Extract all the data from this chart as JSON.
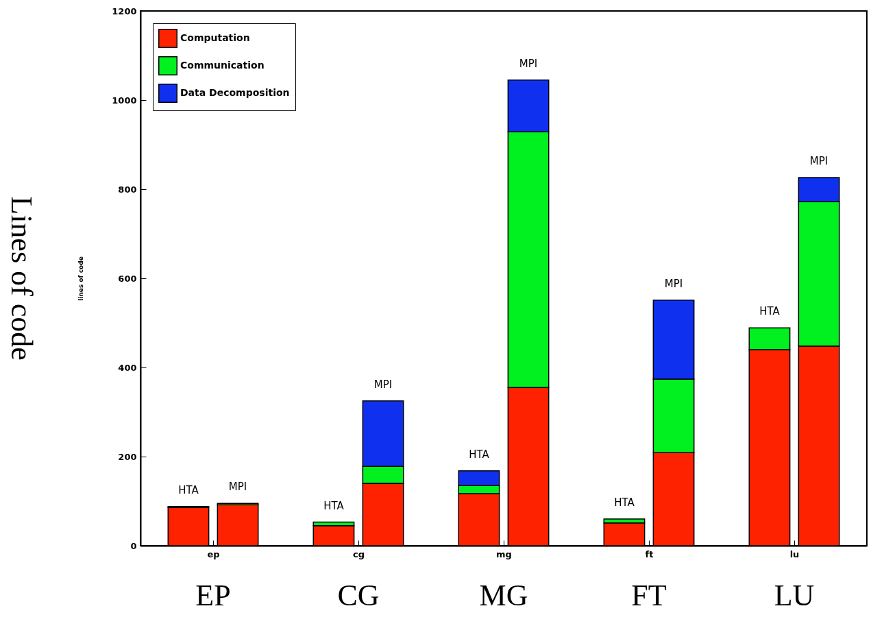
{
  "chart_data": {
    "type": "bar",
    "stacked": true,
    "ylabel": "lines of code",
    "categories": [
      "HTA",
      "MPI",
      "HTA",
      "MPI",
      "HTA",
      "MPI",
      "HTA",
      "MPI",
      "HTA",
      "MPI"
    ],
    "series": [
      {
        "name": "Computation",
        "color": "#ff2200",
        "values": [
          86,
          92,
          45,
          140,
          117,
          355,
          51,
          209,
          440,
          448
        ]
      },
      {
        "name": "Communication",
        "color": "#00f020",
        "values": [
          2,
          3,
          8,
          38,
          18,
          574,
          9,
          165,
          49,
          324
        ]
      },
      {
        "name": "Data Decomposition",
        "color": "#1030f0",
        "values": [
          null,
          null,
          null,
          147,
          33,
          116,
          null,
          177,
          null,
          54
        ]
      }
    ],
    "ylim": [
      0,
      1200
    ],
    "yticks": [
      0,
      200,
      400,
      600,
      800,
      1000,
      1200
    ],
    "legend": "top left",
    "grid": false,
    "annotations": [
      "Lines of code",
      "ep",
      "cg",
      "mg",
      "ft",
      "lu",
      "EP",
      "CG",
      "MG",
      "FT",
      "LU"
    ]
  }
}
